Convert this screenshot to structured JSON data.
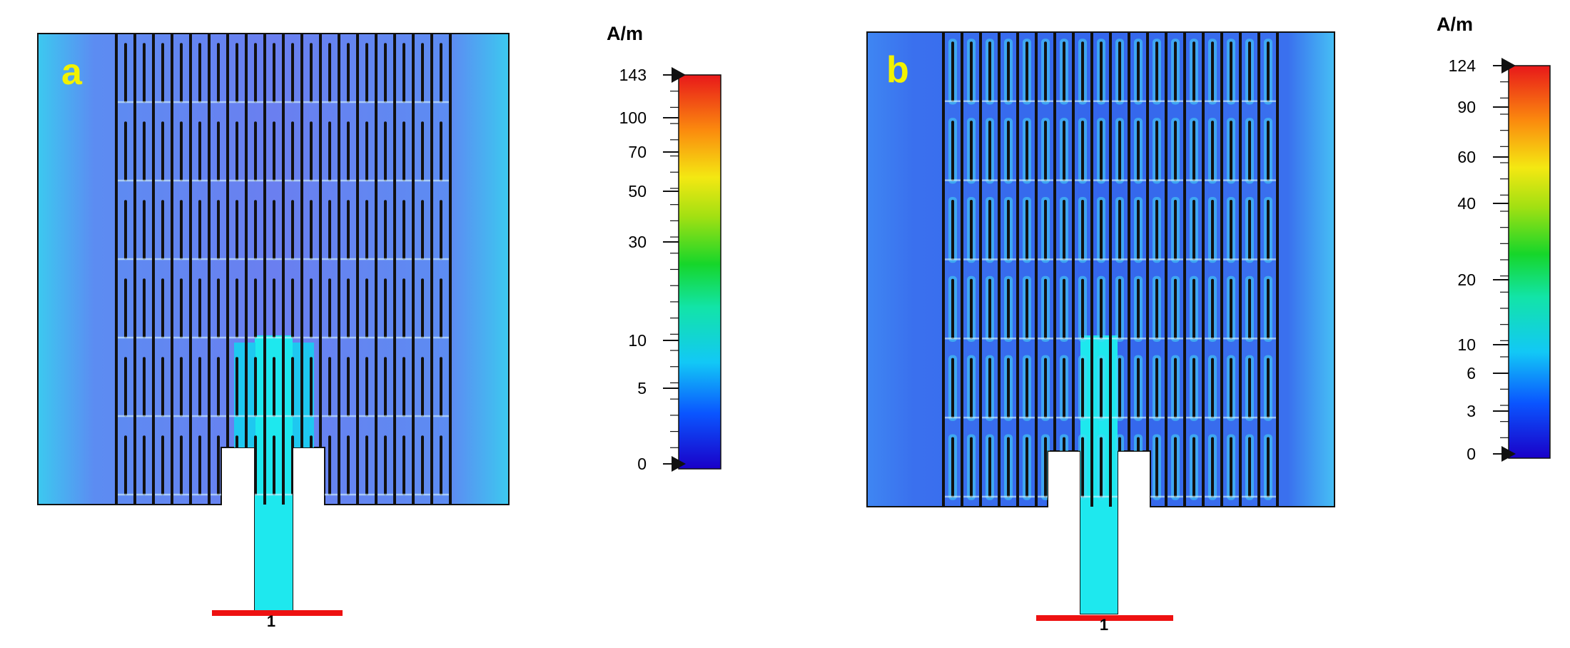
{
  "panels": [
    {
      "letter": "a",
      "port_number": "1",
      "colorbar": {
        "unit": "A/m",
        "max": 143,
        "ticks": [
          {
            "label": "143",
            "value": 143
          },
          {
            "label": "100",
            "value": 100
          },
          {
            "label": "70",
            "value": 70
          },
          {
            "label": "50",
            "value": 50
          },
          {
            "label": "30",
            "value": 30
          },
          {
            "label": "10",
            "value": 10
          },
          {
            "label": "5",
            "value": 5
          },
          {
            "label": "0",
            "value": 0
          }
        ]
      }
    },
    {
      "letter": "b",
      "port_number": "1",
      "colorbar": {
        "unit": "A/m",
        "max": 124,
        "ticks": [
          {
            "label": "124",
            "value": 124
          },
          {
            "label": "90",
            "value": 90
          },
          {
            "label": "60",
            "value": 60
          },
          {
            "label": "40",
            "value": 40
          },
          {
            "label": "20",
            "value": 20
          },
          {
            "label": "10",
            "value": 10
          },
          {
            "label": "6",
            "value": 6
          },
          {
            "label": "3",
            "value": 3
          },
          {
            "label": "0",
            "value": 0
          }
        ]
      }
    }
  ],
  "colors": {
    "letter": "#f2f200",
    "port": "#ee1111",
    "slot": "#111111",
    "feed": "#1ee8ee",
    "patch_a": "#5c8cf2",
    "patch_a_edge": "#3cc9f0",
    "patch_b": "#3f7ef0",
    "patch_b_edge": "#46bff5"
  }
}
